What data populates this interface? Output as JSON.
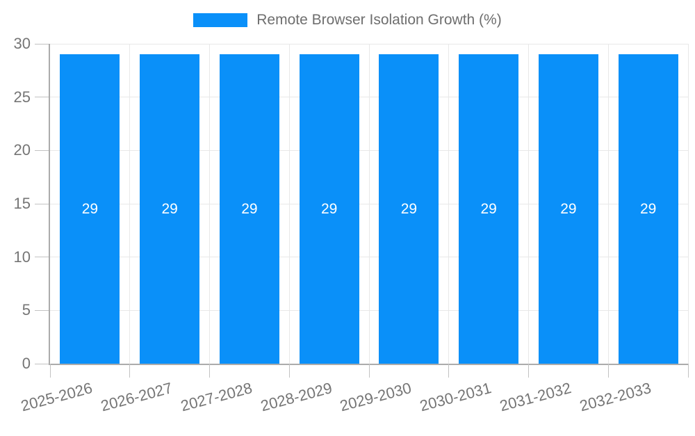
{
  "chart_data": {
    "type": "bar",
    "title": "Remote Browser Isolation Growth (%)",
    "categories": [
      "2025-2026",
      "2026-2027",
      "2027-2028",
      "2028-2029",
      "2029-2030",
      "2030-2031",
      "2031-2032",
      "2032-2033"
    ],
    "values": [
      29,
      29,
      29,
      29,
      29,
      29,
      29,
      29
    ],
    "bar_labels": [
      "29",
      "29",
      "29",
      "29",
      "29",
      "29",
      "29",
      "29"
    ],
    "xlabel": "",
    "ylabel": "",
    "ylim": [
      0,
      30
    ],
    "yticks": [
      0,
      5,
      10,
      15,
      20,
      25,
      30
    ],
    "grid": true,
    "legend": {
      "position": "top",
      "entries": [
        "Remote Browser Isolation Growth (%)"
      ]
    },
    "colors": {
      "bar": "#0a90f9",
      "bar_label": "#ffffff",
      "grid": "#e8e8e8",
      "axis_line": "#ababab",
      "tick": "#c2c2c2",
      "axis_text": "#757575",
      "legend_text": "#6e6e6e",
      "background": "#ffffff"
    }
  }
}
